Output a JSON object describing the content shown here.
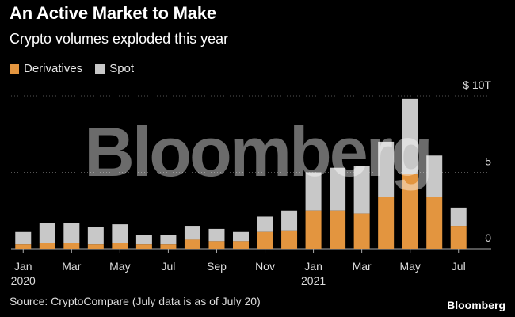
{
  "title": "An Active Market to Make",
  "subtitle": "Crypto volumes exploded this year",
  "legend": {
    "derivatives": "Derivatives",
    "spot": "Spot"
  },
  "colors": {
    "derivatives": "#e3953f",
    "spot": "#c8c8c8",
    "background": "#000000",
    "gridline": "#555555"
  },
  "watermark": "Bloomberg",
  "source": "Source: CryptoCompare (July data is as of July 20)",
  "brand": "Bloomberg",
  "chart_data": {
    "type": "bar",
    "stacked": true,
    "title": "An Active Market to Make",
    "subtitle": "Crypto volumes exploded this year",
    "xlabel": "",
    "ylabel": "",
    "ylim": [
      0,
      10
    ],
    "y_ticks": [
      {
        "value": 0,
        "label": "0"
      },
      {
        "value": 5,
        "label": "5"
      },
      {
        "value": 10,
        "label": "$ 10T"
      }
    ],
    "categories": [
      "Jan 2020",
      "Feb 2020",
      "Mar 2020",
      "Apr 2020",
      "May 2020",
      "Jun 2020",
      "Jul 2020",
      "Aug 2020",
      "Sep 2020",
      "Oct 2020",
      "Nov 2020",
      "Dec 2020",
      "Jan 2021",
      "Feb 2021",
      "Mar 2021",
      "Apr 2021",
      "May 2021",
      "Jun 2021",
      "Jul 2021"
    ],
    "x_tick_labels": [
      {
        "index": 0,
        "label": "Jan",
        "sublabel": "2020"
      },
      {
        "index": 2,
        "label": "Mar",
        "sublabel": ""
      },
      {
        "index": 4,
        "label": "May",
        "sublabel": ""
      },
      {
        "index": 6,
        "label": "Jul",
        "sublabel": ""
      },
      {
        "index": 8,
        "label": "Sep",
        "sublabel": ""
      },
      {
        "index": 10,
        "label": "Nov",
        "sublabel": ""
      },
      {
        "index": 12,
        "label": "Jan",
        "sublabel": "2021"
      },
      {
        "index": 14,
        "label": "Mar",
        "sublabel": ""
      },
      {
        "index": 16,
        "label": "May",
        "sublabel": ""
      },
      {
        "index": 18,
        "label": "Jul",
        "sublabel": ""
      }
    ],
    "series": [
      {
        "name": "Derivatives",
        "values": [
          0.3,
          0.4,
          0.4,
          0.3,
          0.4,
          0.3,
          0.3,
          0.6,
          0.5,
          0.5,
          1.1,
          1.2,
          2.5,
          2.5,
          2.3,
          3.4,
          4.9,
          3.4,
          1.5
        ]
      },
      {
        "name": "Spot",
        "values": [
          0.8,
          1.3,
          1.3,
          1.1,
          1.2,
          0.6,
          0.6,
          0.9,
          0.8,
          0.6,
          1.0,
          1.3,
          2.5,
          2.8,
          3.1,
          3.6,
          4.9,
          2.7,
          1.2
        ]
      }
    ],
    "legend_position": "top-left",
    "grid": true
  }
}
